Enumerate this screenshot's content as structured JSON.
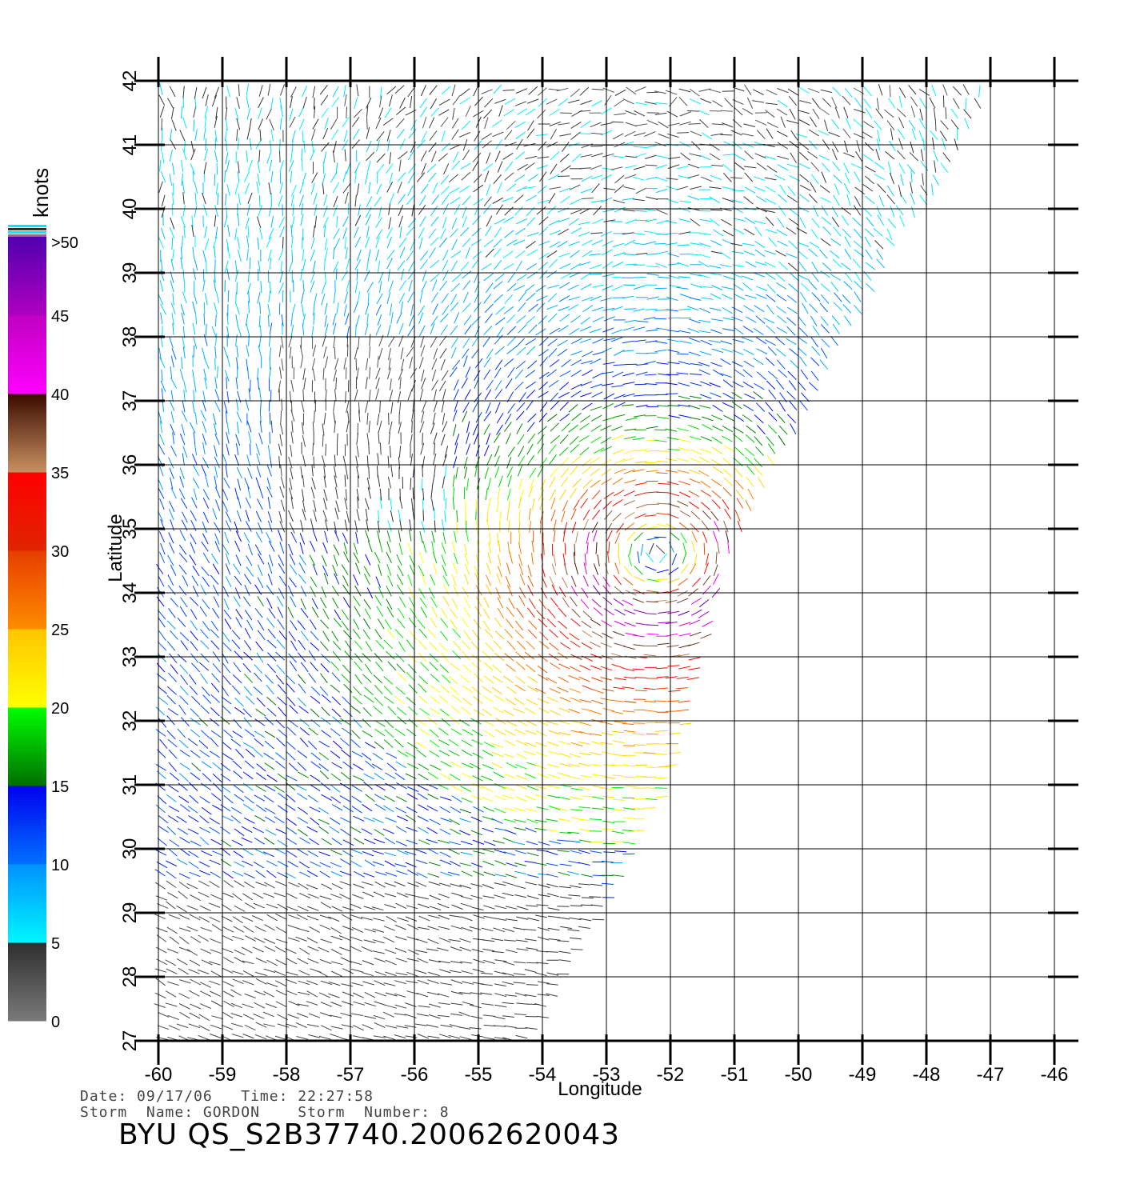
{
  "legend": {
    "title": "knots",
    "bands": [
      {
        "from": 0,
        "to": 5,
        "label": "0",
        "colors": [
          "#7a7a7a",
          "#2e2e2e"
        ]
      },
      {
        "from": 5,
        "to": 10,
        "label": "5",
        "colors": [
          "#00f6ff",
          "#0090ff"
        ]
      },
      {
        "from": 10,
        "to": 15,
        "label": "10",
        "colors": [
          "#0070ff",
          "#0000ee"
        ]
      },
      {
        "from": 15,
        "to": 20,
        "label": "15",
        "colors": [
          "#006e00",
          "#00ff00"
        ]
      },
      {
        "from": 20,
        "to": 25,
        "label": "20",
        "colors": [
          "#ffff00",
          "#ffc400"
        ]
      },
      {
        "from": 25,
        "to": 30,
        "label": "25",
        "colors": [
          "#ff8c00",
          "#e63d00"
        ]
      },
      {
        "from": 30,
        "to": 35,
        "label": "30",
        "colors": [
          "#e02400",
          "#ff0000"
        ]
      },
      {
        "from": 35,
        "to": 40,
        "label": "35",
        "colors": [
          "#c89060",
          "#3a0a00"
        ]
      },
      {
        "from": 40,
        "to": 45,
        "label": "40",
        "colors": [
          "#ff00ff",
          "#c000c0"
        ]
      },
      {
        "from": 45,
        "to": 50,
        "label": "45",
        "colors": [
          "#b000c0",
          "#5000b0"
        ]
      }
    ],
    "top_label": ">50"
  },
  "map": {
    "lon_range": [
      -60,
      -46
    ],
    "lat_range": [
      27,
      42
    ],
    "lon_ticks": [
      "-60",
      "-59",
      "-58",
      "-57",
      "-56",
      "-55",
      "-54",
      "-53",
      "-52",
      "-51",
      "-50",
      "-49",
      "-48",
      "-47",
      "-46"
    ],
    "lat_ticks": [
      "27",
      "28",
      "29",
      "30",
      "31",
      "32",
      "33",
      "34",
      "35",
      "36",
      "37",
      "38",
      "39",
      "40",
      "41",
      "42"
    ],
    "xlabel": "Longitude",
    "ylabel": "Latitude",
    "storm_center": {
      "lon": -52.2,
      "lat": 34.5
    }
  },
  "footer": {
    "line1": "Date: 09/17/06   Time: 22:27:58",
    "line2": "Storm  Name: GORDON    Storm  Number: 8",
    "product": "BYU  QS_S2B37740.20062620043"
  }
}
